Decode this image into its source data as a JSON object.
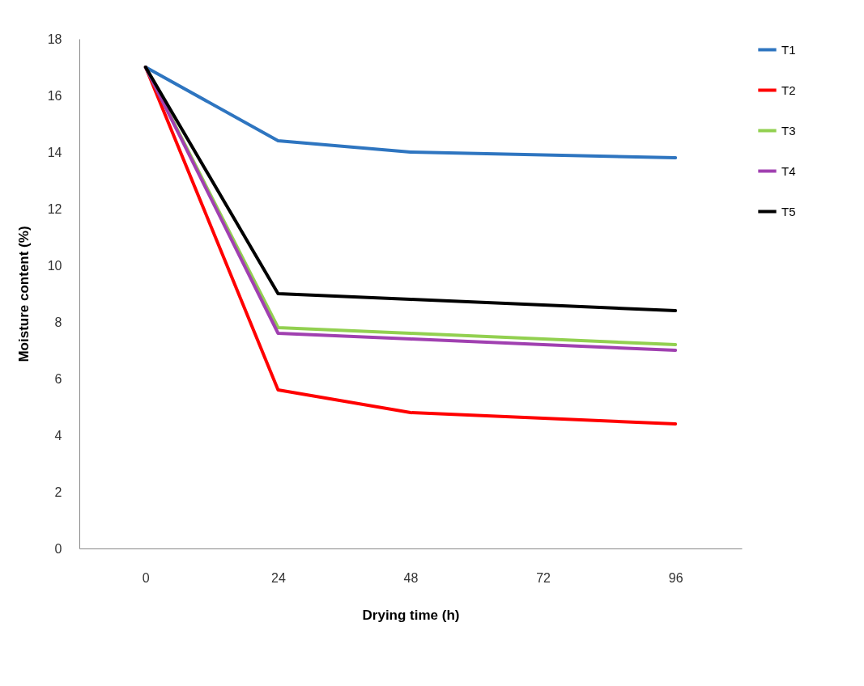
{
  "chart_data": {
    "type": "line",
    "xlabel": "Drying time (h)",
    "ylabel": "Moisture content (%)",
    "x": [
      0,
      24,
      48,
      96
    ],
    "series": [
      {
        "name": "T1",
        "color": "#2e75c0",
        "values": [
          17,
          14.4,
          14,
          13.8
        ]
      },
      {
        "name": "T2",
        "color": "#ff0000",
        "values": [
          17,
          5.6,
          4.8,
          4.4
        ]
      },
      {
        "name": "T3",
        "color": "#92d050",
        "values": [
          17,
          7.8,
          7.6,
          7.2
        ]
      },
      {
        "name": "T4",
        "color": "#a040b0",
        "values": [
          17,
          7.6,
          7.4,
          7.0
        ]
      },
      {
        "name": "T5",
        "color": "#000000",
        "values": [
          17,
          9,
          8.8,
          8.4
        ]
      }
    ],
    "xlim": [
      -12,
      108
    ],
    "xticks": [
      0,
      24,
      48,
      72,
      96
    ],
    "ylim": [
      0,
      18
    ],
    "yticks": [
      0,
      2,
      4,
      6,
      8,
      10,
      12,
      14,
      16,
      18
    ],
    "grid": false,
    "legend": "right",
    "marker": "none",
    "line_style": "solid"
  }
}
